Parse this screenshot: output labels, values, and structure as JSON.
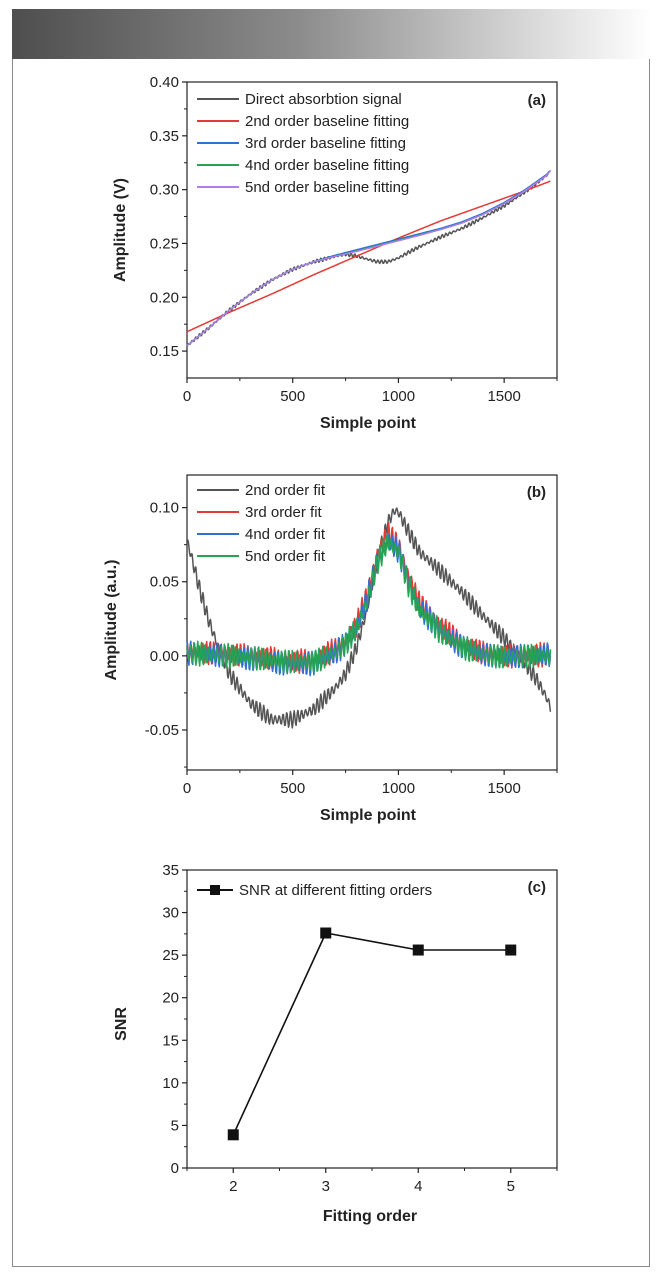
{
  "chart_data": [
    {
      "panel": "(a)",
      "type": "line",
      "xlabel": "Simple point",
      "ylabel": "Amplitude (V)",
      "xlim": [
        0,
        1750
      ],
      "ylim": [
        0.125,
        0.4
      ],
      "xticks": [
        0,
        500,
        1000,
        1500
      ],
      "yticks": [
        0.15,
        0.2,
        0.25,
        0.3,
        0.35,
        0.4
      ],
      "ytick_labels": [
        "0.15",
        "0.20",
        "0.25",
        "0.30",
        "0.35",
        "0.40"
      ],
      "legend_position": "top-left",
      "series": [
        {
          "name": "Direct absorbtion signal",
          "color": "#555555",
          "noise": 0.0012,
          "x": [
            0,
            50,
            100,
            200,
            300,
            400,
            500,
            600,
            700,
            750,
            800,
            850,
            900,
            950,
            1000,
            1050,
            1100,
            1200,
            1300,
            1400,
            1500,
            1600,
            1700,
            1720
          ],
          "y": [
            0.155,
            0.163,
            0.171,
            0.188,
            0.203,
            0.216,
            0.226,
            0.233,
            0.238,
            0.24,
            0.2385,
            0.2355,
            0.233,
            0.233,
            0.2365,
            0.242,
            0.247,
            0.256,
            0.264,
            0.274,
            0.285,
            0.298,
            0.313,
            0.318
          ]
        },
        {
          "name": "2nd order baseline fitting",
          "color": "#e53935",
          "noise": 0,
          "x": [
            0,
            200,
            400,
            600,
            800,
            1000,
            1200,
            1400,
            1600,
            1720
          ],
          "y": [
            0.168,
            0.186,
            0.203,
            0.221,
            0.238,
            0.255,
            0.271,
            0.285,
            0.299,
            0.308
          ]
        },
        {
          "name": "3rd order baseline fitting",
          "color": "#2f6fd6",
          "noise": 0,
          "x": [
            0,
            50,
            100,
            200,
            300,
            400,
            500,
            600,
            700,
            800,
            900,
            1000,
            1100,
            1200,
            1300,
            1400,
            1500,
            1600,
            1700,
            1720
          ],
          "y": [
            0.155,
            0.163,
            0.171,
            0.188,
            0.203,
            0.216,
            0.226,
            0.233,
            0.239,
            0.244,
            0.249,
            0.254,
            0.259,
            0.264,
            0.27,
            0.278,
            0.288,
            0.3,
            0.314,
            0.318
          ]
        },
        {
          "name": "4nd order baseline fitting",
          "color": "#27a356",
          "noise": 0,
          "x": [
            0,
            50,
            100,
            200,
            300,
            400,
            500,
            600,
            700,
            800,
            900,
            1000,
            1100,
            1200,
            1300,
            1400,
            1500,
            1600,
            1700,
            1720
          ],
          "y": [
            0.155,
            0.163,
            0.171,
            0.188,
            0.203,
            0.216,
            0.226,
            0.233,
            0.238,
            0.243,
            0.248,
            0.253,
            0.258,
            0.263,
            0.269,
            0.277,
            0.287,
            0.299,
            0.313,
            0.318
          ]
        },
        {
          "name": "5nd order baseline fitting",
          "color": "#b07ee6",
          "noise": 0,
          "x": [
            0,
            50,
            100,
            200,
            300,
            400,
            500,
            600,
            700,
            800,
            900,
            1000,
            1100,
            1200,
            1300,
            1400,
            1500,
            1600,
            1700,
            1720
          ],
          "y": [
            0.155,
            0.163,
            0.171,
            0.188,
            0.203,
            0.216,
            0.226,
            0.233,
            0.238,
            0.2425,
            0.2475,
            0.2525,
            0.2575,
            0.263,
            0.269,
            0.277,
            0.287,
            0.299,
            0.313,
            0.318
          ]
        }
      ]
    },
    {
      "panel": "(b)",
      "type": "line",
      "xlabel": "Simple point",
      "ylabel": "Amplitude (a.u.)",
      "xlim": [
        0,
        1750
      ],
      "ylim": [
        -0.077,
        0.122
      ],
      "xticks": [
        0,
        500,
        1000,
        1500
      ],
      "yticks": [
        -0.05,
        0.0,
        0.05,
        0.1
      ],
      "ytick_labels": [
        "-0.05",
        "0.00",
        "0.05",
        "0.10"
      ],
      "legend_position": "top-left",
      "series": [
        {
          "name": "2nd order fit",
          "color": "#555555",
          "noise": 0.004,
          "x": [
            0,
            30,
            60,
            100,
            150,
            200,
            300,
            400,
            500,
            600,
            700,
            750,
            800,
            850,
            900,
            950,
            980,
            1000,
            1050,
            1100,
            1200,
            1300,
            1400,
            1500,
            1600,
            1650,
            1700,
            1720
          ],
          "y": [
            0.078,
            0.062,
            0.045,
            0.025,
            0.005,
            -0.012,
            -0.032,
            -0.043,
            -0.043,
            -0.036,
            -0.022,
            -0.012,
            0.005,
            0.03,
            0.065,
            0.09,
            0.098,
            0.097,
            0.083,
            0.07,
            0.057,
            0.043,
            0.027,
            0.012,
            -0.005,
            -0.015,
            -0.028,
            -0.035
          ]
        },
        {
          "name": "3rd order fit",
          "color": "#e53935",
          "noise": 0.006,
          "x": [
            0,
            100,
            200,
            300,
            400,
            500,
            600,
            700,
            750,
            800,
            850,
            900,
            950,
            1000,
            1050,
            1100,
            1200,
            1300,
            1400,
            1500,
            1600,
            1700,
            1720
          ],
          "y": [
            0.003,
            0.002,
            0.001,
            0.0,
            -0.002,
            -0.004,
            -0.003,
            0.004,
            0.01,
            0.02,
            0.04,
            0.068,
            0.082,
            0.075,
            0.052,
            0.035,
            0.02,
            0.008,
            0.002,
            0.0,
            0.0,
            0.001,
            0.001
          ]
        },
        {
          "name": "4nd order fit",
          "color": "#2f6fd6",
          "noise": 0.006,
          "x": [
            0,
            100,
            200,
            300,
            400,
            500,
            600,
            700,
            750,
            800,
            850,
            900,
            950,
            1000,
            1050,
            1100,
            1200,
            1300,
            1400,
            1500,
            1600,
            1700,
            1720
          ],
          "y": [
            0.002,
            0.001,
            0.0,
            -0.002,
            -0.004,
            -0.006,
            -0.005,
            0.002,
            0.008,
            0.018,
            0.037,
            0.064,
            0.078,
            0.071,
            0.049,
            0.032,
            0.017,
            0.006,
            0.001,
            -0.001,
            0.0,
            0.001,
            0.001
          ]
        },
        {
          "name": "5nd order fit",
          "color": "#27a356",
          "noise": 0.006,
          "x": [
            0,
            100,
            200,
            300,
            400,
            500,
            600,
            700,
            750,
            800,
            850,
            900,
            950,
            1000,
            1050,
            1100,
            1200,
            1300,
            1400,
            1500,
            1600,
            1700,
            1720
          ],
          "y": [
            0.002,
            0.001,
            0.0,
            -0.001,
            -0.003,
            -0.004,
            -0.004,
            0.002,
            0.008,
            0.018,
            0.036,
            0.063,
            0.077,
            0.07,
            0.047,
            0.031,
            0.016,
            0.006,
            0.001,
            -0.001,
            0.0,
            0.0,
            0.0
          ]
        }
      ]
    },
    {
      "panel": "(c)",
      "type": "line",
      "xlabel": "Fitting order",
      "ylabel": "SNR",
      "xlim": [
        1.5,
        5.5
      ],
      "ylim": [
        0,
        35
      ],
      "xticks": [
        2,
        3,
        4,
        5
      ],
      "yticks": [
        0,
        5,
        10,
        15,
        20,
        25,
        30,
        35
      ],
      "ytick_labels": [
        "0",
        "5",
        "10",
        "15",
        "20",
        "25",
        "30",
        "35"
      ],
      "legend_position": "top-left",
      "series": [
        {
          "name": "SNR at different fitting orders",
          "color": "#111111",
          "marker": "square",
          "x": [
            2,
            3,
            4,
            5
          ],
          "y": [
            3.9,
            27.6,
            25.6,
            25.6
          ]
        }
      ]
    }
  ]
}
